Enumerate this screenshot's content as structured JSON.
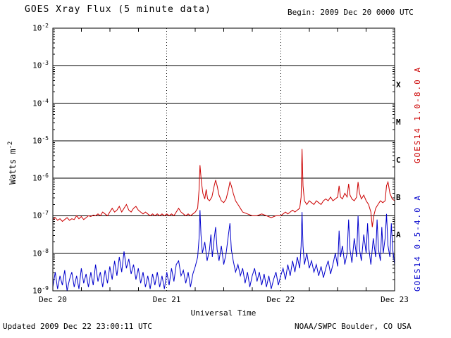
{
  "header": {
    "title": "GOES Xray Flux (5 minute data)",
    "begin": "Begin: 2009 Dec 20 0000 UTC"
  },
  "footer": {
    "updated": "Updated 2009 Dec 22 23:00:11 UTC",
    "source": "NOAA/SWPC Boulder, CO USA"
  },
  "axes": {
    "xlabel": "Universal Time",
    "ylabel_base": "Watts m",
    "ylabel_sup": "-2"
  },
  "chart_data": {
    "type": "line",
    "title": "GOES Xray Flux (5 minute data)",
    "xlabel": "Universal Time",
    "ylabel": "Watts m^-2",
    "x_ticks": [
      "Dec 20",
      "Dec 21",
      "Dec 22",
      "Dec 23"
    ],
    "x_tick_hours": [
      0,
      24,
      48,
      72
    ],
    "x_range_hours": [
      0,
      72
    ],
    "y_log_range": [
      -9,
      -2
    ],
    "y_tick_base": "10",
    "y_tick_exponents": [
      -2,
      -3,
      -4,
      -5,
      -6,
      -7,
      -8,
      -9
    ],
    "vertical_gridline_hours": [
      24,
      48
    ],
    "flare_classes": [
      {
        "label": "X",
        "log_level": -3.5
      },
      {
        "label": "M",
        "log_level": -4.5
      },
      {
        "label": "C",
        "log_level": -5.5
      },
      {
        "label": "B",
        "log_level": -6.5
      },
      {
        "label": "A",
        "log_level": -7.5
      }
    ],
    "series": [
      {
        "name": "GOES14 1.0-8.0 A",
        "color": "#cc0000",
        "points": [
          [
            0,
            -7.1
          ],
          [
            0.5,
            -7.05
          ],
          [
            1,
            -7.12
          ],
          [
            1.5,
            -7.08
          ],
          [
            2,
            -7.15
          ],
          [
            2.5,
            -7.1
          ],
          [
            3,
            -7.05
          ],
          [
            3.5,
            -7.12
          ],
          [
            4,
            -7.08
          ],
          [
            4.5,
            -7.1
          ],
          [
            5,
            -7.0
          ],
          [
            5.5,
            -7.08
          ],
          [
            6,
            -7.02
          ],
          [
            6.5,
            -7.1
          ],
          [
            7,
            -7.05
          ],
          [
            7.5,
            -7.0
          ],
          [
            8,
            -7.02
          ],
          [
            8.5,
            -6.98
          ],
          [
            9,
            -7.0
          ],
          [
            9.5,
            -6.95
          ],
          [
            10,
            -7.0
          ],
          [
            10.5,
            -6.9
          ],
          [
            11,
            -6.95
          ],
          [
            11.5,
            -7.0
          ],
          [
            12,
            -6.9
          ],
          [
            12.5,
            -6.8
          ],
          [
            13,
            -6.9
          ],
          [
            13.5,
            -6.85
          ],
          [
            14,
            -6.75
          ],
          [
            14.5,
            -6.9
          ],
          [
            15,
            -6.8
          ],
          [
            15.5,
            -6.7
          ],
          [
            16,
            -6.85
          ],
          [
            16.5,
            -6.9
          ],
          [
            17,
            -6.8
          ],
          [
            17.5,
            -6.75
          ],
          [
            18,
            -6.85
          ],
          [
            18.5,
            -6.9
          ],
          [
            19,
            -6.95
          ],
          [
            19.5,
            -6.9
          ],
          [
            20,
            -6.95
          ],
          [
            20.5,
            -7.0
          ],
          [
            21,
            -6.95
          ],
          [
            21.5,
            -7.0
          ],
          [
            22,
            -6.95
          ],
          [
            22.5,
            -7.0
          ],
          [
            23,
            -6.95
          ],
          [
            23.5,
            -7.0
          ],
          [
            24,
            -6.95
          ],
          [
            24.5,
            -7.0
          ],
          [
            25,
            -6.95
          ],
          [
            25.5,
            -7.0
          ],
          [
            26,
            -6.9
          ],
          [
            26.5,
            -6.8
          ],
          [
            27,
            -6.9
          ],
          [
            27.5,
            -6.95
          ],
          [
            28,
            -7.0
          ],
          [
            28.5,
            -6.95
          ],
          [
            29,
            -7.0
          ],
          [
            29.5,
            -6.95
          ],
          [
            30,
            -6.9
          ],
          [
            30.5,
            -6.8
          ],
          [
            30.8,
            -6.3
          ],
          [
            31,
            -5.65
          ],
          [
            31.3,
            -6.1
          ],
          [
            31.6,
            -6.4
          ],
          [
            32,
            -6.55
          ],
          [
            32.3,
            -6.3
          ],
          [
            32.6,
            -6.55
          ],
          [
            33,
            -6.6
          ],
          [
            33.5,
            -6.5
          ],
          [
            34,
            -6.2
          ],
          [
            34.3,
            -6.05
          ],
          [
            34.6,
            -6.2
          ],
          [
            35,
            -6.45
          ],
          [
            35.5,
            -6.6
          ],
          [
            36,
            -6.65
          ],
          [
            36.5,
            -6.55
          ],
          [
            37,
            -6.3
          ],
          [
            37.3,
            -6.1
          ],
          [
            37.6,
            -6.2
          ],
          [
            38,
            -6.4
          ],
          [
            38.5,
            -6.6
          ],
          [
            39,
            -6.7
          ],
          [
            39.5,
            -6.8
          ],
          [
            40,
            -6.9
          ],
          [
            41,
            -6.95
          ],
          [
            42,
            -7.0
          ],
          [
            43,
            -7.0
          ],
          [
            44,
            -6.95
          ],
          [
            45,
            -7.0
          ],
          [
            46,
            -7.05
          ],
          [
            47,
            -7.0
          ],
          [
            48,
            -7.0
          ],
          [
            48.5,
            -6.95
          ],
          [
            49,
            -6.9
          ],
          [
            49.5,
            -6.95
          ],
          [
            50,
            -6.9
          ],
          [
            50.5,
            -6.85
          ],
          [
            51,
            -6.9
          ],
          [
            51.5,
            -6.85
          ],
          [
            52,
            -6.8
          ],
          [
            52.3,
            -6.5
          ],
          [
            52.5,
            -5.22
          ],
          [
            52.7,
            -6.2
          ],
          [
            53,
            -6.6
          ],
          [
            53.5,
            -6.7
          ],
          [
            54,
            -6.6
          ],
          [
            54.5,
            -6.65
          ],
          [
            55,
            -6.7
          ],
          [
            55.5,
            -6.6
          ],
          [
            56,
            -6.65
          ],
          [
            56.5,
            -6.7
          ],
          [
            57,
            -6.6
          ],
          [
            57.5,
            -6.55
          ],
          [
            58,
            -6.6
          ],
          [
            58.5,
            -6.5
          ],
          [
            59,
            -6.6
          ],
          [
            59.5,
            -6.55
          ],
          [
            60,
            -6.5
          ],
          [
            60.3,
            -6.2
          ],
          [
            60.6,
            -6.5
          ],
          [
            61,
            -6.55
          ],
          [
            61.5,
            -6.4
          ],
          [
            62,
            -6.5
          ],
          [
            62.3,
            -6.15
          ],
          [
            62.6,
            -6.45
          ],
          [
            63,
            -6.55
          ],
          [
            63.5,
            -6.6
          ],
          [
            64,
            -6.5
          ],
          [
            64.3,
            -6.1
          ],
          [
            64.6,
            -6.4
          ],
          [
            65,
            -6.55
          ],
          [
            65.5,
            -6.45
          ],
          [
            66,
            -6.6
          ],
          [
            66.5,
            -6.7
          ],
          [
            67,
            -6.9
          ],
          [
            67.3,
            -7.3
          ],
          [
            67.6,
            -7.0
          ],
          [
            68,
            -6.8
          ],
          [
            68.5,
            -6.7
          ],
          [
            69,
            -6.6
          ],
          [
            69.5,
            -6.65
          ],
          [
            70,
            -6.6
          ],
          [
            70.3,
            -6.2
          ],
          [
            70.6,
            -6.1
          ],
          [
            71,
            -6.4
          ],
          [
            71.5,
            -6.55
          ],
          [
            72,
            -6.6
          ]
        ]
      },
      {
        "name": "GOES14 0.5-4.0 A",
        "color": "#0000cc",
        "points": [
          [
            0,
            -8.9
          ],
          [
            0.5,
            -8.5
          ],
          [
            1,
            -8.95
          ],
          [
            1.5,
            -8.6
          ],
          [
            2,
            -8.85
          ],
          [
            2.5,
            -8.45
          ],
          [
            3,
            -9.0
          ],
          [
            3.5,
            -8.7
          ],
          [
            4,
            -8.5
          ],
          [
            4.5,
            -8.9
          ],
          [
            5,
            -8.6
          ],
          [
            5.5,
            -8.95
          ],
          [
            6,
            -8.4
          ],
          [
            6.5,
            -8.8
          ],
          [
            7,
            -8.55
          ],
          [
            7.5,
            -8.9
          ],
          [
            8,
            -8.5
          ],
          [
            8.5,
            -8.85
          ],
          [
            9,
            -8.3
          ],
          [
            9.5,
            -8.75
          ],
          [
            10,
            -8.5
          ],
          [
            10.5,
            -8.9
          ],
          [
            11,
            -8.45
          ],
          [
            11.5,
            -8.8
          ],
          [
            12,
            -8.35
          ],
          [
            12.5,
            -8.7
          ],
          [
            13,
            -8.2
          ],
          [
            13.5,
            -8.6
          ],
          [
            14,
            -8.1
          ],
          [
            14.5,
            -8.5
          ],
          [
            15,
            -7.95
          ],
          [
            15.5,
            -8.4
          ],
          [
            16,
            -8.15
          ],
          [
            16.5,
            -8.55
          ],
          [
            17,
            -8.3
          ],
          [
            17.5,
            -8.7
          ],
          [
            18,
            -8.4
          ],
          [
            18.5,
            -8.8
          ],
          [
            19,
            -8.5
          ],
          [
            19.5,
            -8.9
          ],
          [
            20,
            -8.6
          ],
          [
            20.5,
            -8.95
          ],
          [
            21,
            -8.55
          ],
          [
            21.5,
            -8.85
          ],
          [
            22,
            -8.5
          ],
          [
            22.5,
            -8.9
          ],
          [
            23,
            -8.6
          ],
          [
            23.5,
            -8.95
          ],
          [
            24,
            -8.5
          ],
          [
            24.5,
            -8.85
          ],
          [
            25,
            -8.4
          ],
          [
            25.5,
            -8.75
          ],
          [
            26,
            -8.3
          ],
          [
            26.5,
            -8.2
          ],
          [
            27,
            -8.6
          ],
          [
            27.5,
            -8.45
          ],
          [
            28,
            -8.8
          ],
          [
            28.5,
            -8.5
          ],
          [
            29,
            -8.9
          ],
          [
            29.5,
            -8.55
          ],
          [
            30,
            -8.35
          ],
          [
            30.5,
            -8.1
          ],
          [
            30.8,
            -7.6
          ],
          [
            31,
            -6.85
          ],
          [
            31.2,
            -7.5
          ],
          [
            31.5,
            -8.0
          ],
          [
            32,
            -7.7
          ],
          [
            32.5,
            -8.2
          ],
          [
            33,
            -7.9
          ],
          [
            33.3,
            -7.5
          ],
          [
            33.6,
            -8.1
          ],
          [
            34,
            -7.6
          ],
          [
            34.3,
            -7.3
          ],
          [
            34.6,
            -7.9
          ],
          [
            35,
            -8.2
          ],
          [
            35.5,
            -7.8
          ],
          [
            36,
            -8.3
          ],
          [
            36.5,
            -8.0
          ],
          [
            37,
            -7.5
          ],
          [
            37.3,
            -7.2
          ],
          [
            37.6,
            -7.9
          ],
          [
            38,
            -8.2
          ],
          [
            38.5,
            -8.5
          ],
          [
            39,
            -8.3
          ],
          [
            39.5,
            -8.6
          ],
          [
            40,
            -8.4
          ],
          [
            40.5,
            -8.8
          ],
          [
            41,
            -8.5
          ],
          [
            41.5,
            -8.9
          ],
          [
            42,
            -8.6
          ],
          [
            42.5,
            -8.4
          ],
          [
            43,
            -8.75
          ],
          [
            43.5,
            -8.5
          ],
          [
            44,
            -8.85
          ],
          [
            44.5,
            -8.55
          ],
          [
            45,
            -8.9
          ],
          [
            45.5,
            -8.6
          ],
          [
            46,
            -8.95
          ],
          [
            46.5,
            -8.7
          ],
          [
            47,
            -8.5
          ],
          [
            47.5,
            -8.85
          ],
          [
            48,
            -8.6
          ],
          [
            48.5,
            -8.4
          ],
          [
            49,
            -8.7
          ],
          [
            49.5,
            -8.3
          ],
          [
            50,
            -8.6
          ],
          [
            50.5,
            -8.2
          ],
          [
            51,
            -8.5
          ],
          [
            51.5,
            -8.1
          ],
          [
            52,
            -8.4
          ],
          [
            52.3,
            -7.8
          ],
          [
            52.5,
            -6.9
          ],
          [
            52.7,
            -7.8
          ],
          [
            53,
            -8.3
          ],
          [
            53.5,
            -8.0
          ],
          [
            54,
            -8.4
          ],
          [
            54.5,
            -8.2
          ],
          [
            55,
            -8.5
          ],
          [
            55.5,
            -8.3
          ],
          [
            56,
            -8.6
          ],
          [
            56.5,
            -8.35
          ],
          [
            57,
            -8.65
          ],
          [
            57.5,
            -8.4
          ],
          [
            58,
            -8.2
          ],
          [
            58.5,
            -8.55
          ],
          [
            59,
            -8.3
          ],
          [
            59.5,
            -8.0
          ],
          [
            60,
            -8.35
          ],
          [
            60.3,
            -7.4
          ],
          [
            60.6,
            -8.1
          ],
          [
            61,
            -7.8
          ],
          [
            61.5,
            -8.3
          ],
          [
            62,
            -8.0
          ],
          [
            62.3,
            -7.1
          ],
          [
            62.6,
            -7.9
          ],
          [
            63,
            -8.25
          ],
          [
            63.5,
            -7.6
          ],
          [
            64,
            -8.1
          ],
          [
            64.3,
            -7.0
          ],
          [
            64.6,
            -7.9
          ],
          [
            65,
            -8.2
          ],
          [
            65.5,
            -7.5
          ],
          [
            66,
            -8.0
          ],
          [
            66.3,
            -7.2
          ],
          [
            66.6,
            -7.9
          ],
          [
            67,
            -8.3
          ],
          [
            67.5,
            -7.6
          ],
          [
            68,
            -8.1
          ],
          [
            68.3,
            -7.1
          ],
          [
            68.6,
            -7.9
          ],
          [
            69,
            -8.2
          ],
          [
            69.3,
            -7.3
          ],
          [
            69.6,
            -8.0
          ],
          [
            70,
            -7.6
          ],
          [
            70.3,
            -6.95
          ],
          [
            70.6,
            -7.8
          ],
          [
            71,
            -8.1
          ],
          [
            71.3,
            -7.2
          ],
          [
            71.6,
            -7.9
          ],
          [
            72,
            -8.3
          ]
        ]
      }
    ]
  }
}
